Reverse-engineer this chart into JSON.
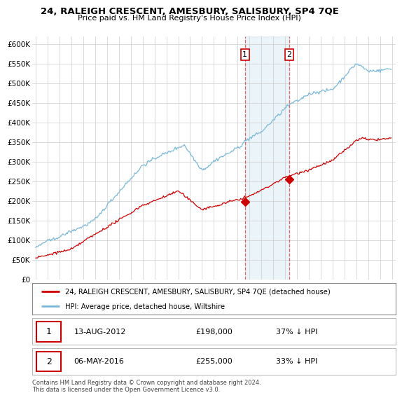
{
  "title": "24, RALEIGH CRESCENT, AMESBURY, SALISBURY, SP4 7QE",
  "subtitle": "Price paid vs. HM Land Registry's House Price Index (HPI)",
  "hpi_color": "#7ab8d9",
  "price_color": "#cc0000",
  "background_color": "#ffffff",
  "grid_color": "#cccccc",
  "ylabel_ticks": [
    "£0",
    "£50K",
    "£100K",
    "£150K",
    "£200K",
    "£250K",
    "£300K",
    "£350K",
    "£400K",
    "£450K",
    "£500K",
    "£550K",
    "£600K"
  ],
  "ytick_values": [
    0,
    50000,
    100000,
    150000,
    200000,
    250000,
    300000,
    350000,
    400000,
    450000,
    500000,
    550000,
    600000
  ],
  "sale1_year": 2012.617,
  "sale1_price": 198000,
  "sale2_year": 2016.352,
  "sale2_price": 255000,
  "legend_line1": "24, RALEIGH CRESCENT, AMESBURY, SALISBURY, SP4 7QE (detached house)",
  "legend_line2": "HPI: Average price, detached house, Wiltshire",
  "table_row1": [
    "1",
    "13-AUG-2012",
    "£198,000",
    "37% ↓ HPI"
  ],
  "table_row2": [
    "2",
    "06-MAY-2016",
    "£255,000",
    "33% ↓ HPI"
  ],
  "footer": "Contains HM Land Registry data © Crown copyright and database right 2024.\nThis data is licensed under the Open Government Licence v3.0."
}
